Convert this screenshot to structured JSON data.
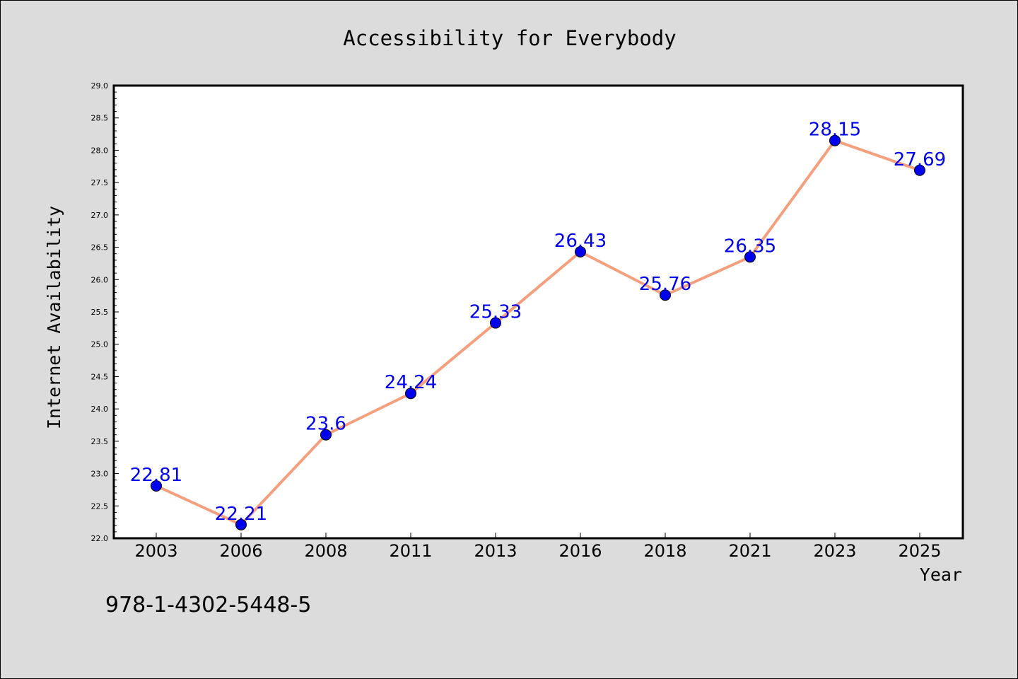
{
  "colors": {
    "background": "#dcdcdc",
    "plot_background": "#ffffff",
    "line": "#f4a07e",
    "marker": "#0000ee",
    "data_label": "#0000ee"
  },
  "footer": {
    "isbn": "978-1-4302-5448-5"
  },
  "chart_data": {
    "type": "line",
    "title": "Accessibility for Everybody",
    "xlabel": "Year",
    "ylabel": "Internet Availability",
    "categories": [
      "2003",
      "2006",
      "2008",
      "2011",
      "2013",
      "2016",
      "2018",
      "2021",
      "2023",
      "2025"
    ],
    "series": [
      {
        "values": [
          22.81,
          22.21,
          23.6,
          24.24,
          25.33,
          26.43,
          25.76,
          26.35,
          28.15,
          27.69
        ],
        "labels": [
          "22.81",
          "22.21",
          "23.6",
          "24.24",
          "25.33",
          "26.43",
          "25.76",
          "26.35",
          "28.15",
          "27.69"
        ]
      }
    ],
    "ylim": [
      22.0,
      29.0
    ],
    "yticks": [
      "22.0",
      "22.5",
      "23.0",
      "23.5",
      "24.0",
      "24.5",
      "25.0",
      "25.5",
      "26.0",
      "26.5",
      "27.0",
      "27.5",
      "28.0",
      "28.5",
      "29.0"
    ],
    "grid": false,
    "legend": "none"
  }
}
